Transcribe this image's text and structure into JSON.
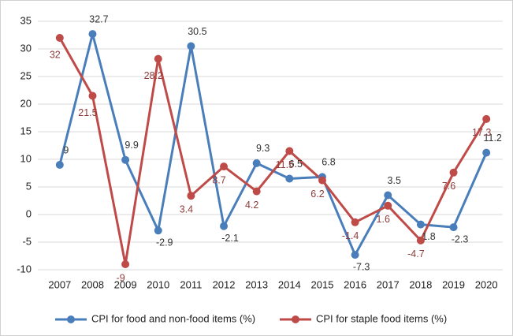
{
  "chart_data": {
    "type": "line",
    "categories": [
      "2007",
      "2008",
      "2009",
      "2010",
      "2011",
      "2012",
      "2013",
      "2014",
      "2015",
      "2016",
      "2017",
      "2018",
      "2019",
      "2020"
    ],
    "series": [
      {
        "name": "CPI for food and non-food items (%)",
        "color": "#4a7ebb",
        "values": [
          9,
          32.7,
          9.9,
          -2.9,
          30.5,
          -2.1,
          9.3,
          6.5,
          6.8,
          -7.3,
          3.5,
          -1.8,
          -2.3,
          11.2
        ]
      },
      {
        "name": "CPI for staple food items (%)",
        "color": "#be4b48",
        "values": [
          32,
          21.5,
          -9,
          28.2,
          3.4,
          8.7,
          4.2,
          11.5,
          6.2,
          -1.4,
          1.6,
          -4.7,
          7.6,
          17.3
        ]
      }
    ],
    "ylim": [
      -10,
      35
    ],
    "yticks": [
      -10,
      -5,
      0,
      5,
      10,
      15,
      20,
      25,
      30,
      35
    ],
    "grid": true
  }
}
